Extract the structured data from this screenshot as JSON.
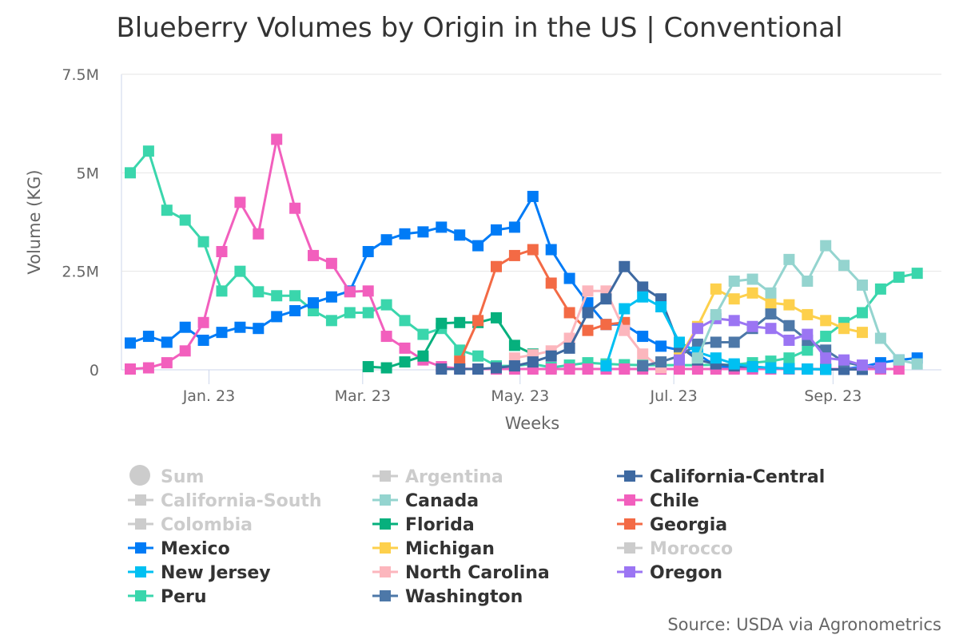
{
  "chart_data": {
    "type": "line",
    "title": "Blueberry Volumes by Origin in the US | Conventional",
    "xlabel": "Weeks",
    "ylabel": "Volume (KG)",
    "ylim": [
      0,
      7500000
    ],
    "yticks": [
      0,
      2500000,
      5000000,
      7500000
    ],
    "ytick_labels": [
      "0",
      "2.5M",
      "5M",
      "7.5M"
    ],
    "xticks": [
      {
        "week": 4.3,
        "label": "Jan. 23"
      },
      {
        "week": 12.7,
        "label": "Mar. 23"
      },
      {
        "week": 21.3,
        "label": "May. 23"
      },
      {
        "week": 29.7,
        "label": "Jul. 23"
      },
      {
        "week": 38.4,
        "label": "Sep. 23"
      }
    ],
    "x_range": [
      0,
      44
    ],
    "source": "Source: USDA via Agronometrics",
    "legend": [
      {
        "name": "Sum",
        "active": false,
        "marker": "circle"
      },
      {
        "name": "Argentina",
        "active": false
      },
      {
        "name": "California-Central",
        "active": true
      },
      {
        "name": "California-South",
        "active": false
      },
      {
        "name": "Canada",
        "active": true
      },
      {
        "name": "Chile",
        "active": true
      },
      {
        "name": "Colombia",
        "active": false
      },
      {
        "name": "Florida",
        "active": true
      },
      {
        "name": "Georgia",
        "active": true
      },
      {
        "name": "Mexico",
        "active": true
      },
      {
        "name": "Michigan",
        "active": true
      },
      {
        "name": "Morocco",
        "active": false
      },
      {
        "name": "New Jersey",
        "active": true
      },
      {
        "name": "North Carolina",
        "active": true
      },
      {
        "name": "Oregon",
        "active": true
      },
      {
        "name": "Peru",
        "active": true
      },
      {
        "name": "Washington",
        "active": true
      }
    ],
    "series": [
      {
        "name": "Peru",
        "color": "#3ad6ac",
        "start": 0,
        "values": [
          5000000,
          5550000,
          4050000,
          3800000,
          3250000,
          2000000,
          2500000,
          1980000,
          1880000,
          1880000,
          1500000,
          1250000,
          1450000,
          1450000,
          1650000,
          1250000,
          900000,
          1050000,
          500000,
          350000,
          100000,
          100000,
          150000,
          60000,
          120000,
          180000,
          150000,
          130000,
          120000,
          120000,
          120000,
          120000,
          130000,
          130000,
          180000,
          220000,
          300000,
          500000,
          850000,
          1200000,
          1450000,
          2050000,
          2350000,
          2450000
        ]
      },
      {
        "name": "Mexico",
        "color": "#007bf6",
        "start": 0,
        "values": [
          680000,
          850000,
          700000,
          1080000,
          750000,
          950000,
          1080000,
          1050000,
          1350000,
          1500000,
          1700000,
          1850000,
          2000000,
          3000000,
          3300000,
          3450000,
          3500000,
          3620000,
          3420000,
          3150000,
          3550000,
          3620000,
          4400000,
          3050000,
          2320000,
          1700000,
          1150000,
          1150000,
          850000,
          600000,
          500000,
          400000,
          100000,
          50000,
          30000,
          20000,
          20000,
          20000,
          20000,
          20000,
          80000,
          180000,
          250000,
          300000
        ]
      },
      {
        "name": "Chile",
        "color": "#f25fbd",
        "start": 0,
        "values": [
          20000,
          50000,
          180000,
          480000,
          1200000,
          3000000,
          4250000,
          3450000,
          5850000,
          4100000,
          2900000,
          2700000,
          1980000,
          2000000,
          850000,
          550000,
          250000,
          80000,
          30000,
          20000,
          20000,
          20000,
          20000,
          20000,
          20000,
          20000,
          20000,
          20000,
          20000,
          20000,
          20000,
          20000,
          20000,
          20000,
          20000,
          20000,
          20000,
          20000,
          20000,
          20000,
          20000,
          20000,
          20000
        ]
      },
      {
        "name": "Florida",
        "color": "#06b07d",
        "start": 13,
        "values": [
          80000,
          50000,
          200000,
          350000,
          1180000,
          1200000,
          1200000,
          1320000,
          620000,
          400000
        ]
      },
      {
        "name": "Georgia",
        "color": "#f36a45",
        "start": 18,
        "values": [
          220000,
          1250000,
          2620000,
          2900000,
          3050000,
          2200000,
          1450000,
          1000000,
          1150000,
          1200000
        ]
      },
      {
        "name": "North Carolina",
        "color": "#fcb6bd",
        "start": 21,
        "values": [
          300000,
          380000,
          480000,
          800000,
          2000000,
          2000000,
          1000000,
          400000,
          50000
        ]
      },
      {
        "name": "California-Central",
        "color": "#3e69a1",
        "start": 17,
        "values": [
          20000,
          20000,
          20000,
          50000,
          100000,
          200000,
          350000,
          550000,
          1450000,
          1800000,
          2620000,
          2100000,
          1800000,
          600000,
          250000,
          150000,
          100000,
          80000,
          50000,
          30000,
          20000,
          10000,
          10000,
          10000
        ]
      },
      {
        "name": "Washington",
        "color": "#4d78a8",
        "start": 28,
        "values": [
          100000,
          200000,
          350000,
          650000,
          700000,
          700000,
          1050000,
          1420000,
          1120000,
          750000,
          500000,
          200000,
          100000,
          50000
        ]
      },
      {
        "name": "New Jersey",
        "color": "#00c0f2",
        "start": 26,
        "values": [
          100000,
          1550000,
          1850000,
          1600000,
          700000,
          450000,
          300000,
          150000,
          80000,
          50000,
          30000,
          20000,
          10000
        ]
      },
      {
        "name": "Michigan",
        "color": "#fdd04c",
        "start": 30,
        "values": [
          300000,
          1100000,
          2050000,
          1800000,
          1950000,
          1700000,
          1650000,
          1400000,
          1250000,
          1050000,
          950000
        ]
      },
      {
        "name": "Oregon",
        "color": "#9b75f3",
        "start": 30,
        "values": [
          250000,
          1050000,
          1300000,
          1250000,
          1100000,
          1050000,
          750000,
          900000,
          300000,
          250000,
          120000,
          50000
        ]
      },
      {
        "name": "Canada",
        "color": "#94d4cf",
        "start": 31,
        "values": [
          300000,
          1400000,
          2250000,
          2300000,
          1950000,
          2800000,
          2250000,
          3150000,
          2650000,
          2150000,
          800000,
          250000,
          150000
        ]
      }
    ]
  }
}
